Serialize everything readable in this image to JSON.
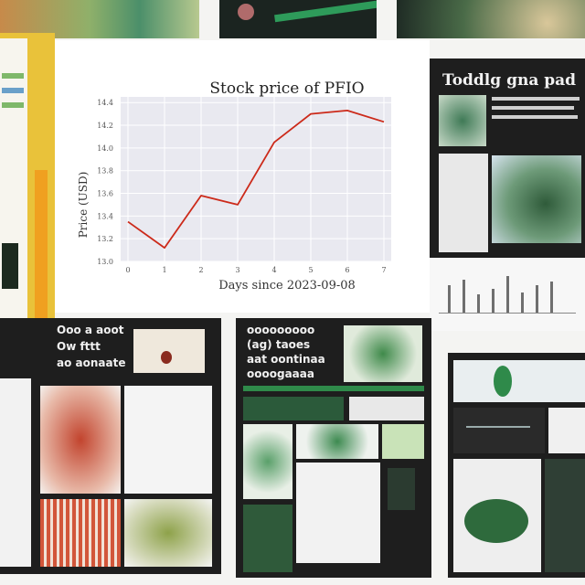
{
  "chart_panel": {
    "chart_data": {
      "type": "line",
      "title": "Stock price of PFIO",
      "xlabel": "Days since 2023-09-08",
      "ylabel": "Price (USD)",
      "x": [
        0,
        1,
        2,
        3,
        4,
        5,
        6,
        7
      ],
      "y_tick_labels": [
        "13.0",
        "13.2",
        "13.4",
        "13.6",
        "13.8",
        "14.0",
        "14.2",
        "14.4"
      ],
      "x_tick_labels": [
        "0",
        "1",
        "2",
        "3",
        "4",
        "5",
        "6",
        "7"
      ],
      "series": [
        {
          "values": [
            13.35,
            13.12,
            13.58,
            13.5,
            14.05,
            14.3,
            14.33,
            14.23
          ]
        }
      ],
      "ylim": [
        13.0,
        14.45
      ],
      "xlim": [
        -0.2,
        7.2
      ],
      "grid": true,
      "colors": {
        "line": "#cc2a1a",
        "plot_bg": "#e9e9f0",
        "grid": "#ffffff"
      }
    }
  },
  "poster_top_right": {
    "title": "Toddlg gna pad"
  },
  "poster_bottom_left": {
    "title_lines": [
      "Ooo a aoot",
      "Ow fttt",
      "ao aonaate"
    ]
  },
  "poster_bottom_middle": {
    "title_lines": [
      "ooooooooo",
      "(ag) taoes",
      "aat oontinaa",
      "oooogaaaa"
    ]
  },
  "colors": {
    "poster_dark": "#1e1e1e",
    "accent_green": "#2f8a4a",
    "accent_red": "#c0392b",
    "accent_yellow": "#e8c33a"
  }
}
